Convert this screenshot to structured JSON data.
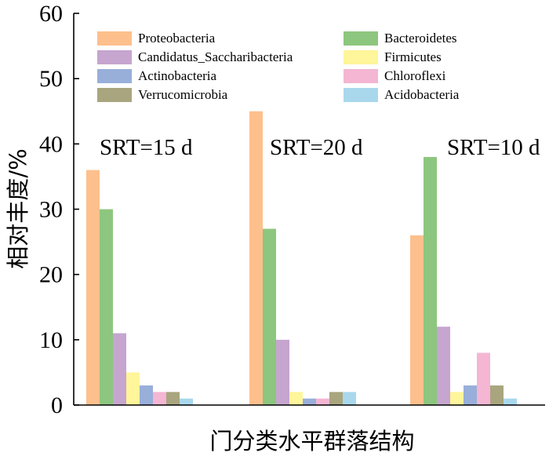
{
  "chart_data": {
    "type": "bar",
    "ylabel": "相对丰度/%",
    "xlabel": "门分类水平群落结构",
    "ylim": [
      0,
      60
    ],
    "yticks": [
      0,
      10,
      20,
      30,
      40,
      50,
      60
    ],
    "groups": [
      "SRT=15 d",
      "SRT=20 d",
      "SRT=10 d"
    ],
    "legend_position": "top",
    "series": [
      {
        "name": "Proteobacteria",
        "color": "#FDC08D",
        "values": [
          36,
          45,
          26
        ]
      },
      {
        "name": "Bacteroidetes",
        "color": "#8DC67E",
        "values": [
          30,
          27,
          38
        ]
      },
      {
        "name": "Candidatus_Saccharibacteria",
        "color": "#C6A5CF",
        "values": [
          11,
          10,
          12
        ]
      },
      {
        "name": "Firmicutes",
        "color": "#FFF59A",
        "values": [
          5,
          2,
          2
        ]
      },
      {
        "name": "Actinobacteria",
        "color": "#98AFD9",
        "values": [
          3,
          1,
          3
        ]
      },
      {
        "name": "Chloroflexi",
        "color": "#F4B6D2",
        "values": [
          2,
          1,
          8
        ]
      },
      {
        "name": "Verrucomicrobia",
        "color": "#A9A57F",
        "values": [
          2,
          2,
          3
        ]
      },
      {
        "name": "Acidobacteria",
        "color": "#A9D8EC",
        "values": [
          1,
          2,
          1
        ]
      }
    ]
  }
}
